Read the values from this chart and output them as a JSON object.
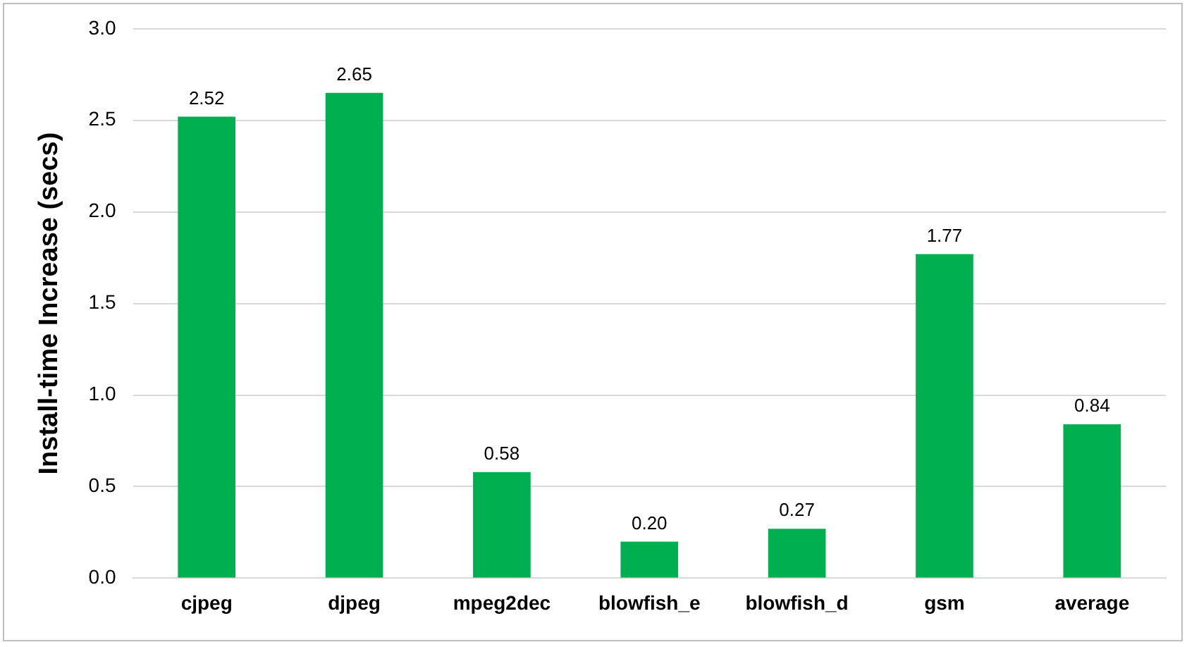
{
  "chart_data": {
    "type": "bar",
    "ylabel": "Install-time Increase (secs)",
    "categories": [
      "cjpeg",
      "djpeg",
      "mpeg2dec",
      "blowfish_e",
      "blowfish_d",
      "gsm",
      "average"
    ],
    "values": [
      2.52,
      2.65,
      0.58,
      0.2,
      0.27,
      1.77,
      0.84
    ],
    "color": "#00b050",
    "value_labels": [
      "2.52",
      "2.65",
      "0.58",
      "0.20",
      "0.27",
      "1.77",
      "0.84"
    ],
    "ylim": [
      0,
      3
    ],
    "yticks": [
      {
        "value": 0,
        "label": "0.0"
      },
      {
        "value": 0.5,
        "label": "0.5"
      },
      {
        "value": 1,
        "label": "1.0"
      },
      {
        "value": 1.5,
        "label": "1.5"
      },
      {
        "value": 2,
        "label": "2.0"
      },
      {
        "value": 2.5,
        "label": "2.5"
      },
      {
        "value": 3,
        "label": "3.0"
      }
    ],
    "grid": "y",
    "legend": false
  }
}
